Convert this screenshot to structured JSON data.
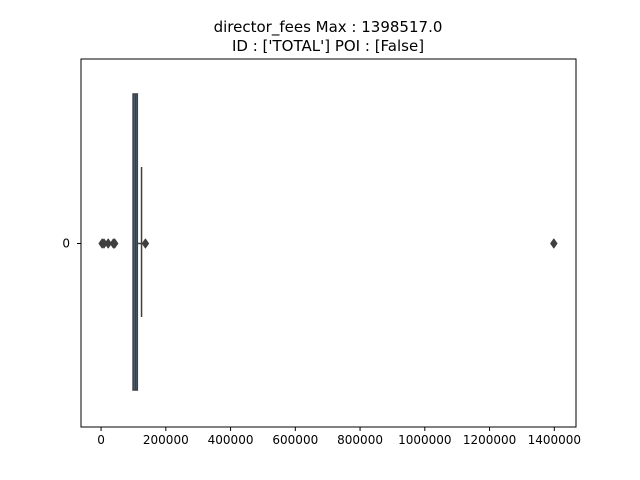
{
  "chart_data": {
    "type": "boxplot",
    "orientation": "horizontal",
    "title": "director_fees  Max : 1398517.0",
    "subtitle": "ID : ['TOTAL']  POI : [False]",
    "xlabel": "",
    "ylabel": "",
    "xlim": [
      -62000,
      1467000
    ],
    "categories": [
      "0"
    ],
    "x_ticks": [
      0,
      200000,
      400000,
      600000,
      800000,
      1000000,
      1200000,
      1400000
    ],
    "x_tick_labels": [
      "0",
      "200000",
      "400000",
      "600000",
      "800000",
      "1000000",
      "1200000",
      "1400000"
    ],
    "box": {
      "q1": 98800,
      "median": 106000,
      "q3": 112000,
      "whisker_low": 98800,
      "whisker_high": 125000
    },
    "outliers": [
      3285,
      9000,
      22000,
      38000,
      42000,
      137000,
      1398517
    ],
    "grid": false,
    "legend": "none",
    "colors": {
      "box_fill": "#3a6ea5",
      "line": "#3f3f3f",
      "text": "#000000",
      "frame": "#000000"
    }
  }
}
